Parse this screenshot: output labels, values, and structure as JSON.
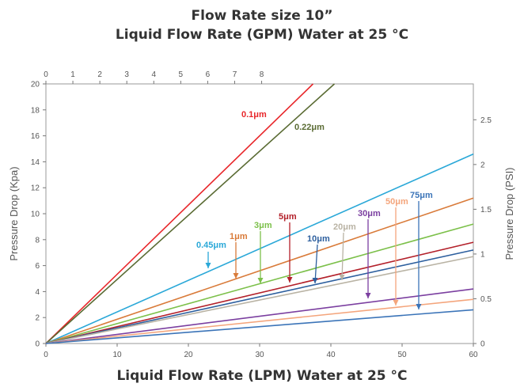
{
  "chart_data": {
    "type": "line",
    "title": "Flow Rate size 10”",
    "subtitle": "Liquid Flow Rate (GPM) Water at 25 °C",
    "xlabel": "Liquid Flow Rate (LPM) Water at 25 °C",
    "ylabel_left": "Pressure Drop (Kpa)",
    "ylabel_right": "Pressure Drop (PSI)",
    "xlim": [
      0,
      60
    ],
    "ylim": [
      0,
      20
    ],
    "x_ticks": [
      "0",
      "10",
      "20",
      "30",
      "40",
      "50",
      "60"
    ],
    "y_ticks": [
      "0",
      "2",
      "4",
      "6",
      "8",
      "10",
      "12",
      "14",
      "16",
      "18",
      "20"
    ],
    "x2_ticks": [
      "0",
      "1",
      "2",
      "3",
      "4",
      "5",
      "6",
      "7",
      "8"
    ],
    "y2_ticks": [
      "0",
      "0.5",
      "1",
      "1.5",
      "2",
      "2.5"
    ],
    "grid": false,
    "series": [
      {
        "name": "0.1μm",
        "color": "#e8262a",
        "x": [
          0,
          37.5
        ],
        "y": [
          0,
          20
        ]
      },
      {
        "name": "0.22μm",
        "color": "#5a6b33",
        "x": [
          0,
          40.5
        ],
        "y": [
          0,
          20
        ]
      },
      {
        "name": "0.45μm",
        "color": "#2aa8d8",
        "x": [
          0,
          60
        ],
        "y": [
          0,
          14.6
        ]
      },
      {
        "name": "1μm",
        "color": "#d97b3a",
        "x": [
          0,
          60
        ],
        "y": [
          0,
          11.2
        ]
      },
      {
        "name": "3μm",
        "color": "#7cc04a",
        "x": [
          0,
          60
        ],
        "y": [
          0,
          9.2
        ]
      },
      {
        "name": "5μm",
        "color": "#b3202a",
        "x": [
          0,
          60
        ],
        "y": [
          0,
          7.8
        ]
      },
      {
        "name": "10μm",
        "color": "#2d5f9e",
        "x": [
          0,
          60
        ],
        "y": [
          0,
          7.2
        ]
      },
      {
        "name": "20μm",
        "color": "#b9b3a4",
        "x": [
          0,
          60
        ],
        "y": [
          0,
          6.7
        ]
      },
      {
        "name": "30μm",
        "color": "#7b3fa0",
        "x": [
          0,
          60
        ],
        "y": [
          0,
          4.2
        ]
      },
      {
        "name": "50μm",
        "color": "#f4a57c",
        "x": [
          0,
          60
        ],
        "y": [
          0,
          3.4
        ]
      },
      {
        "name": "75μm",
        "color": "#3b74b8",
        "x": [
          0,
          60
        ],
        "y": [
          0,
          2.6
        ]
      }
    ],
    "annotations": [
      {
        "label": "0.1μm",
        "color": "#e8262a"
      },
      {
        "label": "0.22μm",
        "color": "#5a6b33"
      },
      {
        "label": "0.45μm",
        "color": "#2aa8d8"
      },
      {
        "label": "1μm",
        "color": "#d97b3a"
      },
      {
        "label": "3μm",
        "color": "#7cc04a"
      },
      {
        "label": "5μm",
        "color": "#b3202a"
      },
      {
        "label": "10μm",
        "color": "#2d5f9e"
      },
      {
        "label": "20μm",
        "color": "#b9b3a4"
      },
      {
        "label": "30μm",
        "color": "#7b3fa0"
      },
      {
        "label": "50μm",
        "color": "#f4a57c"
      },
      {
        "label": "75μm",
        "color": "#3b74b8"
      }
    ]
  }
}
